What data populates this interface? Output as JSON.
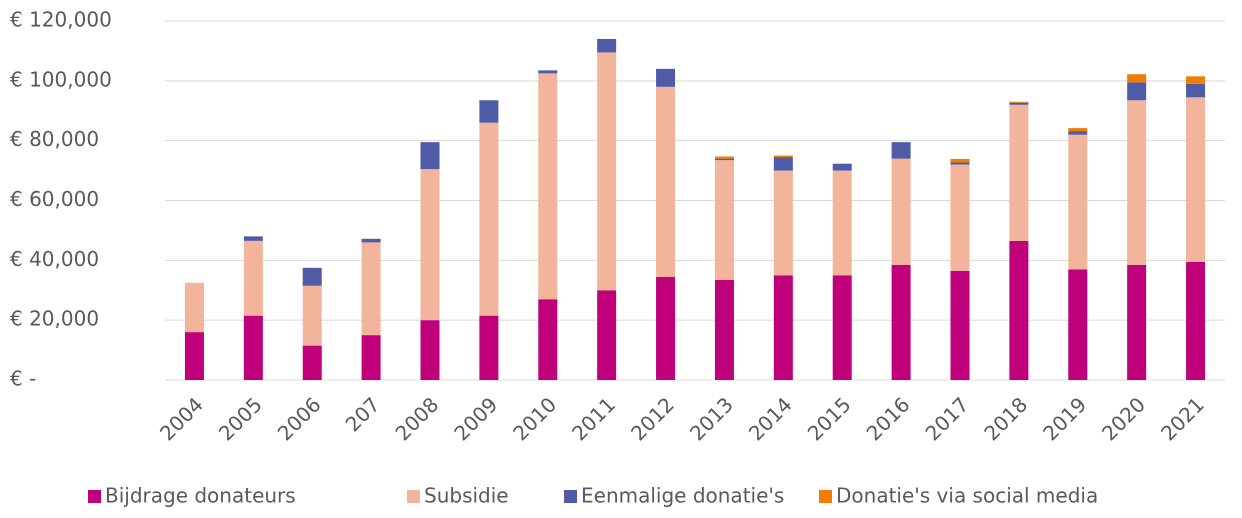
{
  "chart_data": {
    "type": "stacked_bar",
    "categories": [
      "2004",
      "2005",
      "2006",
      "207",
      "2008",
      "2009",
      "2010",
      "2011",
      "2012",
      "2013",
      "2014",
      "2015",
      "2016",
      "2017",
      "2018",
      "2019",
      "2020",
      "2021"
    ],
    "series": [
      {
        "name": "Bijdrage donateurs",
        "color": "#c0007a",
        "values": [
          16000,
          21500,
          11500,
          15000,
          20000,
          21500,
          27000,
          30000,
          34500,
          33500,
          35000,
          35000,
          38500,
          36500,
          46500,
          37000,
          38500,
          39500
        ]
      },
      {
        "name": "Subsidie",
        "color": "#f2b49a",
        "values": [
          16500,
          25000,
          20000,
          31000,
          50500,
          64500,
          75500,
          79500,
          63500,
          40000,
          35000,
          35000,
          35500,
          35500,
          45500,
          45000,
          55000,
          55000
        ]
      },
      {
        "name": "Eenmalige donatie's",
        "color": "#4f5ba6",
        "values": [
          0,
          1500,
          6000,
          1200,
          9000,
          7500,
          1000,
          4500,
          6000,
          500,
          4500,
          2300,
          5500,
          700,
          700,
          1200,
          6000,
          4500
        ]
      },
      {
        "name": "Donatie's via social media",
        "color": "#f07d00",
        "values": [
          0,
          0,
          0,
          0,
          0,
          0,
          0,
          0,
          0,
          700,
          500,
          0,
          0,
          1200,
          300,
          1000,
          2700,
          2500
        ]
      }
    ],
    "ylim": [
      0,
      120000
    ],
    "yticks": [
      {
        "value": 0,
        "label": "€ -"
      },
      {
        "value": 20000,
        "label": "€ 20,000"
      },
      {
        "value": 40000,
        "label": "€ 40,000"
      },
      {
        "value": 60000,
        "label": "€ 60,000"
      },
      {
        "value": 80000,
        "label": "€ 80,000"
      },
      {
        "value": 100000,
        "label": "€ 100,000"
      },
      {
        "value": 120000,
        "label": "€ 120,000"
      }
    ],
    "grid": true
  }
}
